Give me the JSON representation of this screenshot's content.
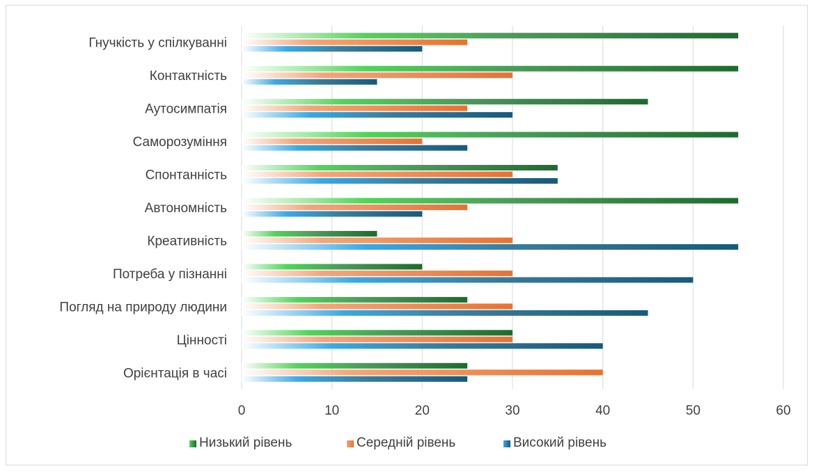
{
  "chart_data": {
    "type": "bar",
    "orientation": "horizontal",
    "title": "",
    "xlabel": "",
    "ylabel": "",
    "xlim": [
      0,
      60
    ],
    "xticks": [
      0,
      10,
      20,
      30,
      40,
      50,
      60
    ],
    "grid": true,
    "legend_position": "bottom",
    "categories": [
      "Гнучкість у спілкуванні",
      "Контактність",
      "Аутосимпатія",
      "Саморозуміння",
      "Спонтанність",
      "Автономність",
      "Креативність",
      "Потреба у пізнанні",
      "Погляд на природу людини",
      "Цінності",
      "Орієнтація в часі"
    ],
    "series": [
      {
        "name": "Низький рівень",
        "color": "#2e7d32",
        "values": [
          55,
          55,
          45,
          55,
          35,
          55,
          15,
          20,
          25,
          30,
          25
        ]
      },
      {
        "name": "Середній рівень",
        "color": "#ed7d31",
        "values": [
          25,
          30,
          25,
          20,
          30,
          25,
          30,
          30,
          30,
          30,
          40
        ]
      },
      {
        "name": "Високий рівень",
        "color": "#1f6e94",
        "values": [
          20,
          15,
          30,
          25,
          35,
          20,
          55,
          50,
          45,
          40,
          25
        ]
      }
    ]
  }
}
